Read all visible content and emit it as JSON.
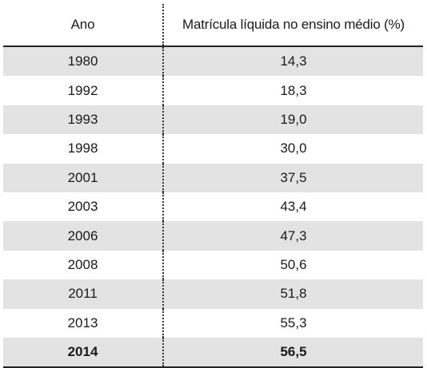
{
  "table": {
    "headers": [
      "Ano",
      "Matrícula líquida no ensino médio (%)"
    ],
    "rows": [
      [
        "1980",
        "14,3"
      ],
      [
        "1992",
        "18,3"
      ],
      [
        "1993",
        "19,0"
      ],
      [
        "1998",
        "30,0"
      ],
      [
        "2001",
        "37,5"
      ],
      [
        "2003",
        "43,4"
      ],
      [
        "2006",
        "47,3"
      ],
      [
        "2008",
        "50,6"
      ],
      [
        "2011",
        "51,8"
      ],
      [
        "2013",
        "55,3"
      ],
      [
        "2014",
        "56,5"
      ]
    ]
  }
}
